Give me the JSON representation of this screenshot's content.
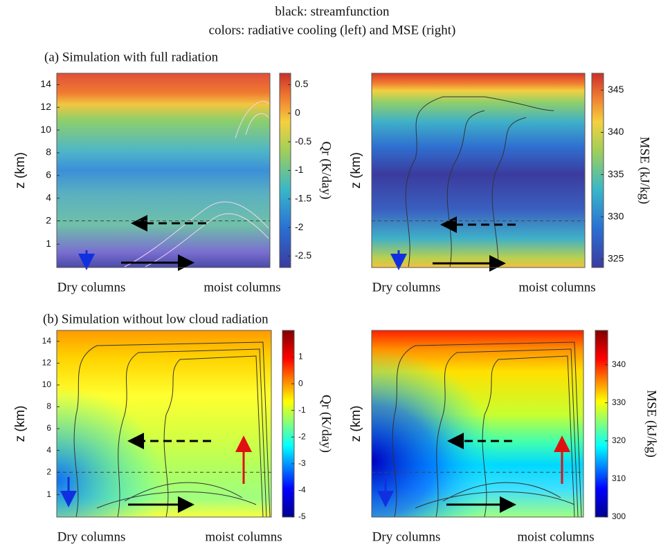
{
  "title_lines": [
    "black: streamfunction",
    "colors: radiative cooling (left) and MSE (right)"
  ],
  "panel_titles": [
    "(a) Simulation with full radiation",
    "(b) Simulation without low cloud radiation"
  ],
  "chart_data": [
    {
      "type": "contour",
      "ylabel": "z (km)",
      "xlabels": [
        "Dry columns",
        "moist columns"
      ],
      "ylim": [
        0,
        15
      ],
      "yticks": [
        1,
        2,
        4,
        6,
        8,
        10,
        12,
        14
      ],
      "hline": 2,
      "colorbar": {
        "label": "Qr (K/day)",
        "clim": [
          -2.7,
          0.7
        ],
        "ticks": [
          0.5,
          0,
          -0.5,
          -1,
          -1.5,
          -2,
          -2.5
        ]
      }
    },
    {
      "type": "contour",
      "ylabel": "z (km)",
      "xlabels": [
        "Dry columns",
        "moist columns"
      ],
      "ylim": [
        0,
        15
      ],
      "hline": 2,
      "colorbar": {
        "label": "MSE (kJ/kg)",
        "clim": [
          324,
          347
        ],
        "ticks": [
          325,
          330,
          335,
          340,
          345
        ]
      }
    },
    {
      "type": "contour",
      "ylabel": "z (km)",
      "xlabels": [
        "Dry columns",
        "moist columns"
      ],
      "ylim": [
        0,
        15
      ],
      "yticks": [
        1,
        2,
        4,
        6,
        8,
        10,
        12,
        14
      ],
      "hline": 2,
      "colorbar": {
        "label": "Qr (K/day)",
        "clim": [
          -5,
          2
        ],
        "ticks": [
          1,
          0,
          -1,
          -2,
          -3,
          -4,
          -5
        ]
      }
    },
    {
      "type": "contour",
      "ylabel": "z (km)",
      "xlabels": [
        "Dry columns",
        "moist columns"
      ],
      "ylim": [
        0,
        15
      ],
      "hline": 2,
      "colorbar": {
        "label": "MSE (kJ/kg)",
        "clim": [
          300,
          349
        ],
        "ticks": [
          300,
          310,
          320,
          330,
          340
        ]
      }
    }
  ]
}
